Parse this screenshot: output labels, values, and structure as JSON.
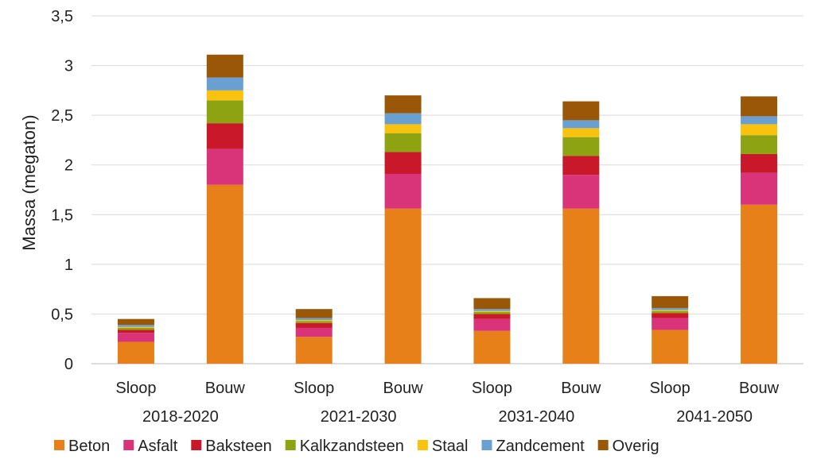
{
  "chart_data": {
    "type": "bar",
    "stacked": true,
    "title": "",
    "xlabel": "",
    "ylabel": "Massa (megaton)",
    "ylim": [
      0,
      3.5
    ],
    "yticks": [
      {
        "value": 0,
        "label": "0"
      },
      {
        "value": 0.5,
        "label": "0,5"
      },
      {
        "value": 1,
        "label": "1"
      },
      {
        "value": 1.5,
        "label": "1,5"
      },
      {
        "value": 2,
        "label": "2"
      },
      {
        "value": 2.5,
        "label": "2,5"
      },
      {
        "value": 3,
        "label": "3"
      },
      {
        "value": 3.5,
        "label": "3,5"
      }
    ],
    "grid": true,
    "legend_position": "bottom",
    "groups": [
      "2018-2020",
      "2021-2030",
      "2031-2040",
      "2041-2050"
    ],
    "categories": [
      "Sloop",
      "Bouw",
      "Sloop",
      "Bouw",
      "Sloop",
      "Bouw",
      "Sloop",
      "Bouw"
    ],
    "series": [
      {
        "name": "Beton",
        "color": "#E8801A",
        "values": [
          0.22,
          1.8,
          0.27,
          1.56,
          0.33,
          1.56,
          0.34,
          1.6
        ]
      },
      {
        "name": "Asfalt",
        "color": "#D9347A",
        "values": [
          0.09,
          0.36,
          0.09,
          0.35,
          0.12,
          0.34,
          0.12,
          0.32
        ]
      },
      {
        "name": "Baksteen",
        "color": "#C8182A",
        "values": [
          0.03,
          0.26,
          0.05,
          0.22,
          0.05,
          0.19,
          0.05,
          0.19
        ]
      },
      {
        "name": "Kalkzandsteen",
        "color": "#8DA312",
        "values": [
          0.02,
          0.23,
          0.02,
          0.19,
          0.02,
          0.19,
          0.02,
          0.19
        ]
      },
      {
        "name": "Staal",
        "color": "#F9C20E",
        "values": [
          0.01,
          0.1,
          0.01,
          0.09,
          0.01,
          0.09,
          0.01,
          0.11
        ]
      },
      {
        "name": "Zandcement",
        "color": "#6A9FD1",
        "values": [
          0.02,
          0.13,
          0.02,
          0.11,
          0.02,
          0.08,
          0.02,
          0.08
        ]
      },
      {
        "name": "Overig",
        "color": "#9A5708",
        "values": [
          0.06,
          0.23,
          0.09,
          0.18,
          0.11,
          0.19,
          0.12,
          0.2
        ]
      }
    ]
  }
}
